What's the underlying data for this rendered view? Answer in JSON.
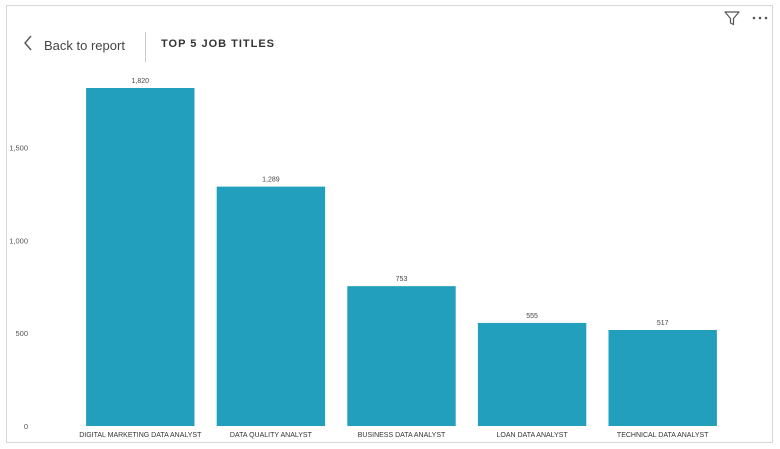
{
  "header": {
    "back_label": "Back to report",
    "icons": [
      "filter-icon",
      "more-options-icon"
    ]
  },
  "chart_data": {
    "type": "bar",
    "title": "TOP 5 JOB TITLES",
    "categories": [
      "DIGITAL MARKETING DATA ANALYST",
      "DATA QUALITY ANALYST",
      "BUSINESS DATA ANALYST",
      "LOAN DATA ANALYST",
      "TECHNICAL DATA ANALYST"
    ],
    "values": [
      1820,
      1289,
      753,
      555,
      517
    ],
    "value_labels": [
      "1,820",
      "1,289",
      "753",
      "555",
      "517"
    ],
    "yticks": [
      0,
      500,
      1000,
      1500
    ],
    "ytick_labels": [
      "0",
      "500",
      "1,000",
      "1,500"
    ],
    "ylim": [
      0,
      1820
    ],
    "xlabel": "",
    "ylabel": "",
    "grid": false,
    "bar_color": "#229fbd"
  }
}
